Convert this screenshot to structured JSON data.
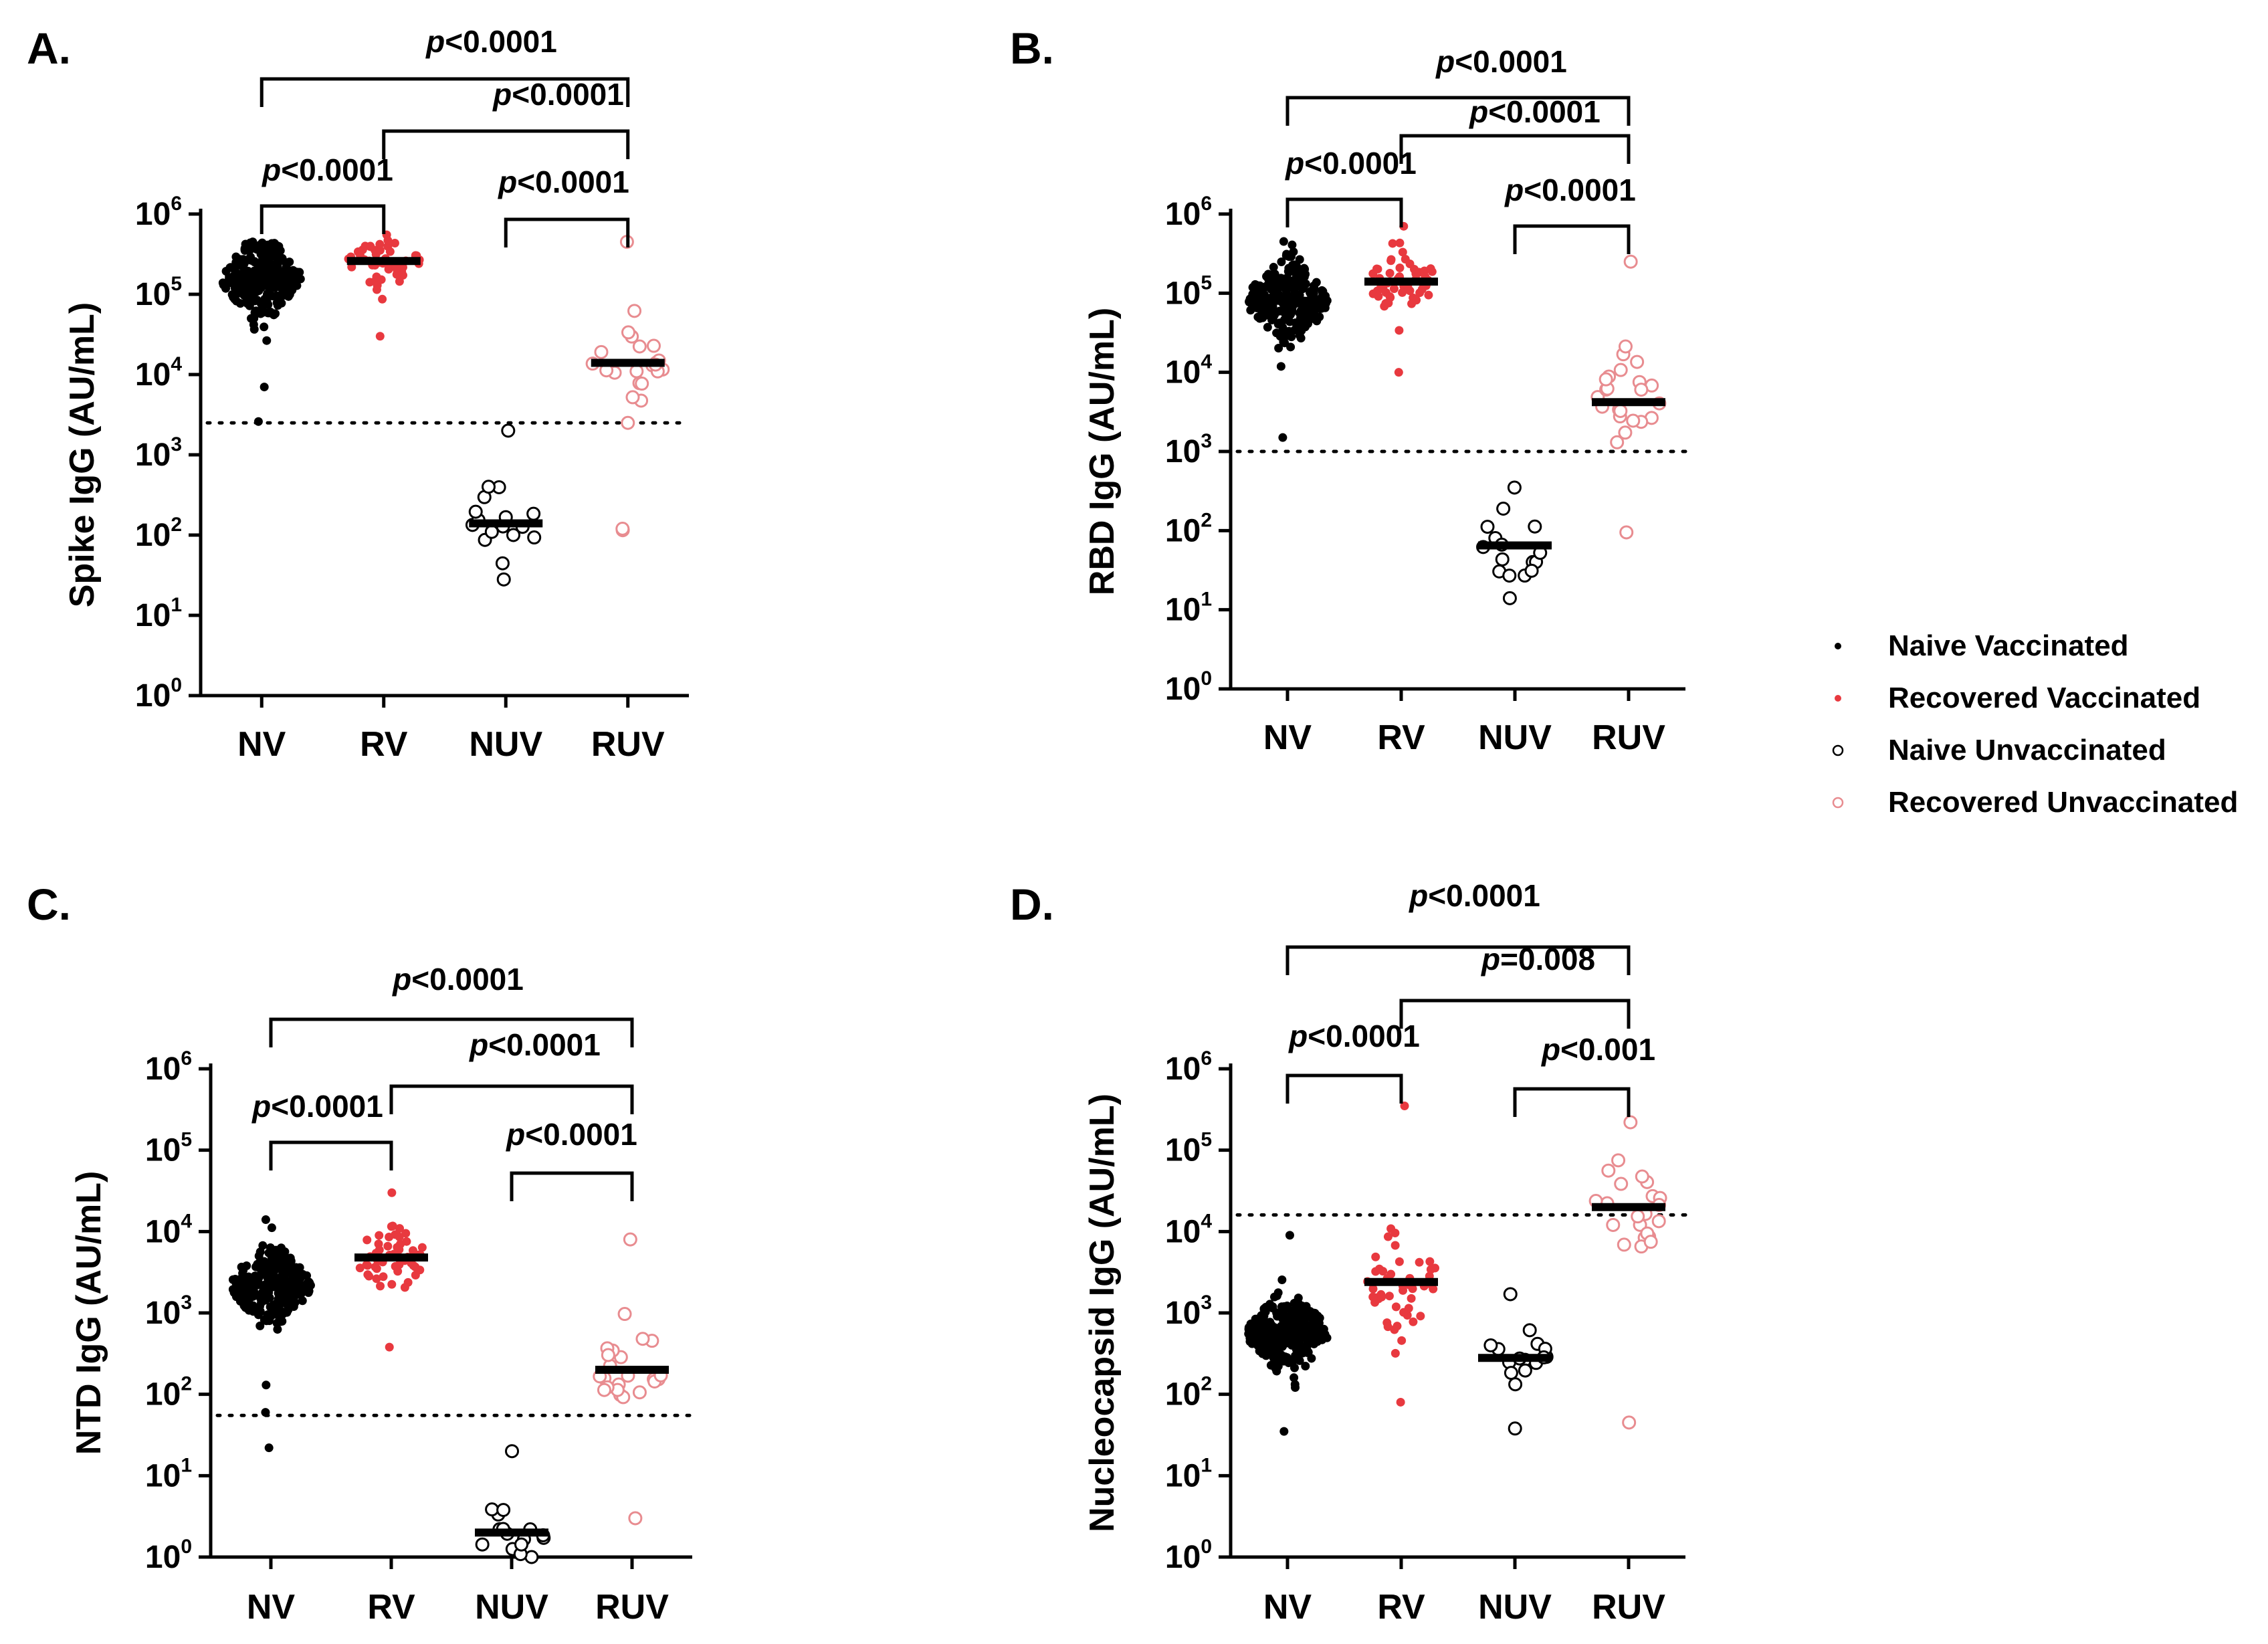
{
  "colors": {
    "black": "#000000",
    "red": "#e8393f",
    "pink": "#e88c90"
  },
  "legend": [
    {
      "label": "Naive Vaccinated",
      "marker": "filled",
      "color": "#000000"
    },
    {
      "label": "Recovered Vaccinated",
      "marker": "filled",
      "color": "#e8393f"
    },
    {
      "label": "Naive Unvaccinated",
      "marker": "open",
      "color": "#000000"
    },
    {
      "label": "Recovered Unvaccinated",
      "marker": "open",
      "color": "#e88c90"
    }
  ],
  "chart_data": [
    {
      "panel": "A.",
      "type": "scatter",
      "ylabel": "Spike IgG (AU/mL)",
      "yscale": "log",
      "ylim": [
        1,
        1000000
      ],
      "yticks": [
        "10^0",
        "10^1",
        "10^2",
        "10^3",
        "10^4",
        "10^5",
        "10^6"
      ],
      "categories": [
        "NV",
        "RV",
        "NUV",
        "RUV"
      ],
      "threshold": 2500,
      "medians": [
        160000,
        260000,
        140,
        14000
      ],
      "groups": [
        {
          "name": "NV",
          "n": 260,
          "center": 160000,
          "spread": 0.42,
          "min": 7000,
          "max": 450000,
          "style": "filled",
          "color": "#000000",
          "extra": [
            2600
          ]
        },
        {
          "name": "RV",
          "n": 52,
          "center": 260000,
          "spread": 0.28,
          "min": 30000,
          "max": 550000,
          "style": "filled",
          "color": "#e8393f",
          "extra": []
        },
        {
          "name": "NUV",
          "n": 16,
          "center": 140,
          "spread": 0.5,
          "min": 28,
          "max": 400,
          "style": "open",
          "color": "#000000",
          "extra": [
            2000
          ]
        },
        {
          "name": "RUV",
          "n": 22,
          "center": 14000,
          "spread": 0.45,
          "min": 2500,
          "max": 450000,
          "style": "open",
          "color": "#e88c90",
          "extra": [
            115,
            120
          ]
        }
      ],
      "brackets": [
        {
          "from": "NV",
          "to": "RUV",
          "label": "p<0.0001"
        },
        {
          "from": "RV",
          "to": "RUV",
          "label": "p<0.0001"
        },
        {
          "from": "NV",
          "to": "RV",
          "label": "p<0.0001"
        },
        {
          "from": "NUV",
          "to": "RUV",
          "label": "p<0.0001"
        }
      ]
    },
    {
      "panel": "B.",
      "type": "scatter",
      "ylabel": "RBD IgG (AU/mL)",
      "yscale": "log",
      "ylim": [
        1,
        1000000
      ],
      "yticks": [
        "10^0",
        "10^1",
        "10^2",
        "10^3",
        "10^4",
        "10^5",
        "10^6"
      ],
      "categories": [
        "NV",
        "RV",
        "NUV",
        "RUV"
      ],
      "threshold": 1000,
      "medians": [
        80000,
        140000,
        65,
        4200
      ],
      "groups": [
        {
          "name": "NV",
          "n": 260,
          "center": 80000,
          "spread": 0.45,
          "min": 1500,
          "max": 450000,
          "style": "filled",
          "color": "#000000",
          "extra": []
        },
        {
          "name": "RV",
          "n": 52,
          "center": 140000,
          "spread": 0.35,
          "min": 10000,
          "max": 700000,
          "style": "filled",
          "color": "#e8393f",
          "extra": []
        },
        {
          "name": "NUV",
          "n": 16,
          "center": 65,
          "spread": 0.45,
          "min": 14,
          "max": 350,
          "style": "open",
          "color": "#000000",
          "extra": []
        },
        {
          "name": "RUV",
          "n": 24,
          "center": 4200,
          "spread": 0.5,
          "min": 95,
          "max": 250000,
          "style": "open",
          "color": "#e88c90",
          "extra": []
        }
      ],
      "brackets": [
        {
          "from": "NV",
          "to": "RUV",
          "label": "p<0.0001"
        },
        {
          "from": "RV",
          "to": "RUV",
          "label": "p<0.0001"
        },
        {
          "from": "NV",
          "to": "RV",
          "label": "p<0.0001"
        },
        {
          "from": "NUV",
          "to": "RUV",
          "label": "p<0.0001"
        }
      ]
    },
    {
      "panel": "C.",
      "type": "scatter",
      "ylabel": "NTD IgG (AU/mL)",
      "yscale": "log",
      "ylim": [
        1,
        1000000
      ],
      "yticks": [
        "10^0",
        "10^1",
        "10^2",
        "10^3",
        "10^4",
        "10^5",
        "10^6"
      ],
      "categories": [
        "NV",
        "RV",
        "NUV",
        "RUV"
      ],
      "threshold": 55,
      "medians": [
        2200,
        4800,
        2,
        200
      ],
      "groups": [
        {
          "name": "NV",
          "n": 260,
          "center": 2200,
          "spread": 0.4,
          "min": 130,
          "max": 14000,
          "style": "filled",
          "color": "#000000",
          "extra": [
            22,
            60
          ]
        },
        {
          "name": "RV",
          "n": 52,
          "center": 4800,
          "spread": 0.35,
          "min": 380,
          "max": 30000,
          "style": "filled",
          "color": "#e8393f",
          "extra": []
        },
        {
          "name": "NUV",
          "n": 16,
          "center": 2,
          "spread": 0.4,
          "min": 1,
          "max": 20,
          "style": "open",
          "color": "#000000",
          "extra": []
        },
        {
          "name": "RUV",
          "n": 24,
          "center": 200,
          "spread": 0.55,
          "min": 3,
          "max": 8000,
          "style": "open",
          "color": "#e88c90",
          "extra": []
        }
      ],
      "brackets": [
        {
          "from": "NV",
          "to": "RUV",
          "label": "p<0.0001"
        },
        {
          "from": "RV",
          "to": "RUV",
          "label": "p<0.0001"
        },
        {
          "from": "NV",
          "to": "RV",
          "label": "p<0.0001"
        },
        {
          "from": "NUV",
          "to": "RUV",
          "label": "p<0.0001"
        }
      ]
    },
    {
      "panel": "D.",
      "type": "scatter",
      "ylabel": "Nucleocapsid IgG (AU/mL)",
      "yscale": "log",
      "ylim": [
        1,
        1000000
      ],
      "yticks": [
        "10^0",
        "10^1",
        "10^2",
        "10^3",
        "10^4",
        "10^5",
        "10^6"
      ],
      "categories": [
        "NV",
        "RV",
        "NUV",
        "RUV"
      ],
      "threshold": 16000,
      "medians": [
        550,
        2400,
        280,
        20000
      ],
      "groups": [
        {
          "name": "NV",
          "n": 260,
          "center": 550,
          "spread": 0.42,
          "min": 35,
          "max": 9000,
          "style": "filled",
          "color": "#000000",
          "extra": []
        },
        {
          "name": "RV",
          "n": 52,
          "center": 2400,
          "spread": 0.6,
          "min": 80,
          "max": 350000,
          "style": "filled",
          "color": "#e8393f",
          "extra": []
        },
        {
          "name": "NUV",
          "n": 16,
          "center": 280,
          "spread": 0.35,
          "min": 38,
          "max": 1700,
          "style": "open",
          "color": "#000000",
          "extra": []
        },
        {
          "name": "RUV",
          "n": 24,
          "center": 20000,
          "spread": 0.6,
          "min": 45,
          "max": 220000,
          "style": "open",
          "color": "#e88c90",
          "extra": []
        }
      ],
      "brackets": [
        {
          "from": "NV",
          "to": "RUV",
          "label": "p<0.0001"
        },
        {
          "from": "RV",
          "to": "RUV",
          "label": "p=0.008"
        },
        {
          "from": "NV",
          "to": "RV",
          "label": "p<0.0001"
        },
        {
          "from": "NUV",
          "to": "RUV",
          "label": "p<0.001"
        }
      ]
    }
  ]
}
